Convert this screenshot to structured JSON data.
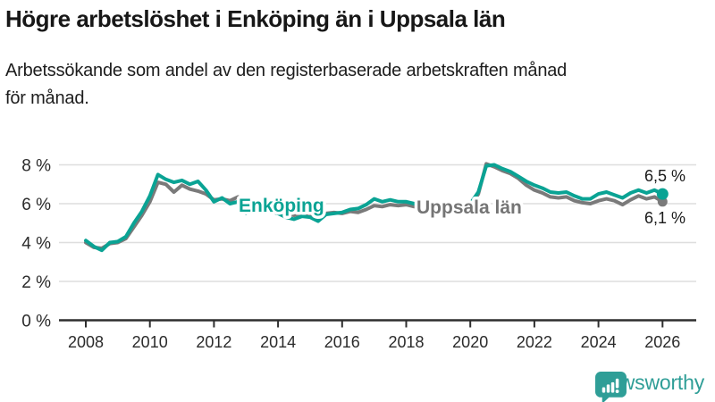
{
  "title": "Högre arbetslöshet i Enköping än i Uppsala län",
  "subtitle": {
    "lines": [
      "Arbetssökande som andel av den registerbaserade arbetskraften månad",
      "för månad."
    ]
  },
  "footer": {
    "brand": "Newsworthy",
    "brand_color": "#2f9e97",
    "logo_icon": "newsworthy-speech-bubble-bar-chart-icon"
  },
  "chart_data": {
    "type": "line",
    "title": "Högre arbetslöshet i Enköping än i Uppsala län",
    "subtitle": "Arbetssökande som andel av den registerbaserade arbetskraften månad för månad.",
    "xlabel": "",
    "ylabel": "",
    "grid": true,
    "legend": "inline-labels",
    "xlim": [
      2008,
      2026.2
    ],
    "ylim": [
      0,
      8.8
    ],
    "x_start": 2008,
    "x_step_years": 0.25,
    "x_ticks": [
      2008,
      2010,
      2012,
      2014,
      2016,
      2018,
      2020,
      2022,
      2024,
      2026
    ],
    "y_ticks": [
      0,
      2,
      4,
      6,
      8
    ],
    "y_tick_labels": [
      "0 %",
      "2 %",
      "4 %",
      "6 %",
      "8 %"
    ],
    "colors": {
      "grid": "#dedede",
      "axis": "#2e2e2e",
      "end_value_text": "#1a1a1a"
    },
    "series": [
      {
        "name": "Uppsala län",
        "color": "#7a7a7a",
        "end_label": "6,1 %",
        "end_value": 6.1,
        "values": [
          4.0,
          3.75,
          3.7,
          3.95,
          4.0,
          4.2,
          4.8,
          5.4,
          6.1,
          7.1,
          7.0,
          6.6,
          6.95,
          6.75,
          6.65,
          6.5,
          6.2,
          6.25,
          6.15,
          6.35,
          6.0,
          5.85,
          5.7,
          5.6,
          5.55,
          5.5,
          5.4,
          5.5,
          5.45,
          5.35,
          5.5,
          5.55,
          5.5,
          5.6,
          5.55,
          5.7,
          5.9,
          5.85,
          5.95,
          5.9,
          5.95,
          5.85,
          5.8,
          5.7,
          5.6,
          5.55,
          5.6,
          5.7,
          5.9,
          6.5,
          8.05,
          7.9,
          7.7,
          7.55,
          7.3,
          6.95,
          6.7,
          6.55,
          6.35,
          6.3,
          6.35,
          6.15,
          6.05,
          6.0,
          6.15,
          6.25,
          6.15,
          5.95,
          6.2,
          6.4,
          6.25,
          6.35,
          6.1
        ]
      },
      {
        "name": "Enköping",
        "color": "#0aa394",
        "end_label": "6,5 %",
        "end_value": 6.5,
        "values": [
          4.1,
          3.8,
          3.6,
          4.0,
          4.05,
          4.3,
          5.0,
          5.6,
          6.4,
          7.5,
          7.25,
          7.1,
          7.2,
          7.0,
          7.15,
          6.7,
          6.1,
          6.3,
          6.0,
          6.1,
          5.5,
          5.9,
          5.75,
          5.6,
          5.5,
          5.3,
          5.2,
          5.35,
          5.3,
          5.1,
          5.45,
          5.5,
          5.55,
          5.7,
          5.75,
          5.95,
          6.25,
          6.1,
          6.2,
          6.1,
          6.1,
          6.0,
          6.05,
          5.95,
          5.9,
          5.85,
          5.8,
          5.95,
          6.0,
          6.6,
          7.95,
          8.0,
          7.8,
          7.65,
          7.4,
          7.15,
          6.95,
          6.8,
          6.6,
          6.55,
          6.6,
          6.4,
          6.25,
          6.25,
          6.5,
          6.6,
          6.45,
          6.3,
          6.55,
          6.7,
          6.55,
          6.7,
          6.5
        ]
      }
    ]
  }
}
